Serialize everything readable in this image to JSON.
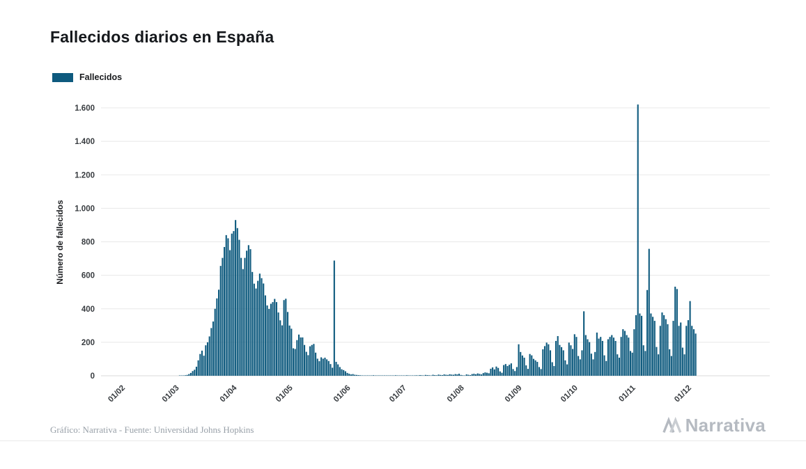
{
  "page": {
    "title": "Fallecidos diarios en España"
  },
  "legend": {
    "label": "Fallecidos",
    "color": "#0e5a7e"
  },
  "footer": {
    "credit": "Gráfico: Narrativa - Fuente: Universidad Johns Hopkins",
    "brand": "Narrativa"
  },
  "chart_data": {
    "type": "bar",
    "title": "Fallecidos diarios en España",
    "xlabel": "",
    "ylabel": "Número de fallecidos",
    "ylim": [
      0,
      1600
    ],
    "grid": true,
    "legend_position": "top-left",
    "bar_color": "#0e5a7e",
    "ytick_values": [
      0,
      200,
      400,
      600,
      800,
      1000,
      1200,
      1400,
      1600
    ],
    "ytick_labels": [
      "0",
      "200",
      "400",
      "600",
      "800",
      "1.000",
      "1.200",
      "1.400",
      "1.600"
    ],
    "xtick_labels": [
      "01/02",
      "01/03",
      "01/04",
      "01/05",
      "01/06",
      "01/07",
      "01/08",
      "01/09",
      "01/10",
      "01/11",
      "01/12"
    ],
    "xtick_day_indices": [
      0,
      29,
      60,
      90,
      121,
      151,
      182,
      213,
      243,
      274,
      304
    ],
    "series": [
      {
        "name": "Fallecidos",
        "start_date": "2020-02-01",
        "values": [
          0,
          0,
          0,
          0,
          0,
          0,
          0,
          0,
          0,
          0,
          0,
          0,
          0,
          0,
          0,
          0,
          0,
          0,
          0,
          0,
          0,
          0,
          0,
          0,
          0,
          0,
          0,
          0,
          0,
          0,
          0,
          1,
          2,
          1,
          3,
          5,
          10,
          17,
          28,
          36,
          54,
          92,
          130,
          150,
          120,
          182,
          200,
          235,
          285,
          324,
          400,
          462,
          514,
          656,
          704,
          769,
          840,
          821,
          750,
          849,
          864,
          930,
          882,
          812,
          704,
          637,
          704,
          747,
          780,
          756,
          620,
          550,
          521,
          567,
          610,
          583,
          551,
          480,
          420,
          399,
          430,
          440,
          459,
          440,
          378,
          331,
          301,
          452,
          460,
          381,
          300,
          281,
          164,
          160,
          213,
          246,
          229,
          229,
          184,
          143,
          123,
          176,
          184,
          190,
          138,
          102,
          87,
          110,
          102,
          108,
          98,
          88,
          70,
          48,
          688,
          83,
          68,
          52,
          39,
          34,
          27,
          17,
          12,
          8,
          10,
          6,
          5,
          4,
          3,
          2,
          1,
          1,
          2,
          1,
          1,
          3,
          2,
          1,
          1,
          2,
          1,
          1,
          2,
          1,
          1,
          2,
          1,
          3,
          2,
          1,
          1,
          2,
          1,
          3,
          2,
          1,
          1,
          2,
          3,
          2,
          4,
          3,
          2,
          5,
          4,
          3,
          2,
          6,
          4,
          3,
          7,
          5,
          4,
          8,
          6,
          5,
          9,
          7,
          6,
          10,
          8,
          12,
          5,
          3,
          2,
          8,
          6,
          4,
          10,
          12,
          9,
          14,
          11,
          8,
          16,
          20,
          18,
          15,
          42,
          50,
          38,
          55,
          47,
          26,
          18,
          64,
          70,
          58,
          66,
          74,
          40,
          28,
          52,
          188,
          142,
          121,
          108,
          62,
          41,
          130,
          122,
          101,
          92,
          83,
          52,
          40,
          158,
          177,
          198,
          188,
          152,
          81,
          58,
          208,
          237,
          184,
          171,
          152,
          92,
          68,
          198,
          182,
          160,
          248,
          232,
          118,
          98,
          152,
          385,
          243,
          218,
          201,
          132,
          98,
          142,
          258,
          222,
          232,
          208,
          122,
          88,
          218,
          232,
          243,
          228,
          208,
          128,
          108,
          232,
          278,
          268,
          243,
          228,
          148,
          138,
          278,
          362,
          1620,
          372,
          358,
          182,
          148,
          512,
          758,
          372,
          352,
          328,
          172,
          128,
          298,
          378,
          362,
          338,
          308,
          158,
          118,
          328,
          532,
          518,
          298,
          318,
          168,
          128,
          298,
          332,
          446,
          298,
          278,
          252
        ]
      }
    ]
  }
}
